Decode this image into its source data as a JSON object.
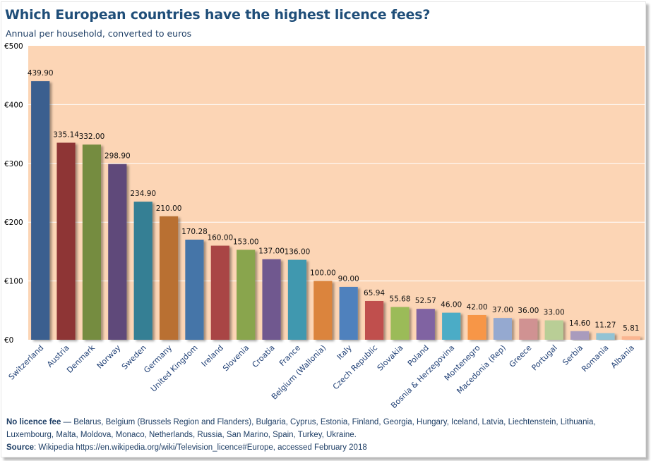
{
  "chart_data": {
    "type": "bar",
    "title": "Which European countries have the highest licence fees?",
    "subtitle": "Annual per household, converted to euros",
    "xlabel": "",
    "ylabel": "",
    "ylim": [
      0,
      500
    ],
    "yticks": [
      0,
      100,
      200,
      300,
      400,
      500
    ],
    "ytick_labels": [
      "€0",
      "€100",
      "€200",
      "€300",
      "€400",
      "€500"
    ],
    "grid": true,
    "legend": "none",
    "plot_background": "#fcd5b5",
    "categories": [
      "Switzerland",
      "Austria",
      "Denmark",
      "Norway",
      "Sweden",
      "Germany",
      "United Kingdom",
      "Ireland",
      "Slovenia",
      "Croatia",
      "France",
      "Belgium (Wallonia)",
      "Italy",
      "Czech Republic",
      "Slovakia",
      "Poland",
      "Bosnia & Herzegovina",
      "Montenegro",
      "Macedonia (Rep)",
      "Greece",
      "Portugal",
      "Serbia",
      "Romania",
      "Albania"
    ],
    "values": [
      439.9,
      335.14,
      332.0,
      298.9,
      234.9,
      210.0,
      170.28,
      160.0,
      153.0,
      137.0,
      136.0,
      100.0,
      90.0,
      65.94,
      55.68,
      52.57,
      46.0,
      42.0,
      37.0,
      36.0,
      33.0,
      14.6,
      11.27,
      5.81
    ],
    "value_labels": [
      "439.90",
      "335.14",
      "332.00",
      "298.90",
      "234.90",
      "210.00",
      "170.28",
      "160.00",
      "153.00",
      "137.00",
      "136.00",
      "100.00",
      "90.00",
      "65.94",
      "55.68",
      "52.57",
      "46.00",
      "42.00",
      "37.00",
      "36.00",
      "33.00",
      "14.60",
      "11.27",
      "5.81"
    ],
    "colors": [
      "#3a5f8f",
      "#8e3636",
      "#758c41",
      "#5f4a7a",
      "#357f94",
      "#b96f33",
      "#4574a8",
      "#a94545",
      "#89a54e",
      "#70588f",
      "#4198af",
      "#db843d",
      "#4f81bd",
      "#c0504d",
      "#9bbb59",
      "#8064a2",
      "#4bacc6",
      "#f79646",
      "#95a9d0",
      "#d09292",
      "#b9ce96",
      "#a99bbd",
      "#92c3d4",
      "#fab590"
    ]
  },
  "notes": {
    "no_fee_label": "No licence fee",
    "no_fee_text": " — Belarus, Belgium (Brussels Region and Flanders), Bulgaria, Cyprus, Estonia, Finland, Georgia, Hungary, Iceland, Latvia, Liechtenstein, Lithuania, Luxembourg, Malta, Moldova, Monaco, Netherlands, Russia, San Marino, Spain, Turkey, Ukraine.",
    "source_label": "Source",
    "source_text": ": Wikipedia https://en.wikipedia.org/wiki/Television_licence#Europe, accessed February 2018"
  }
}
